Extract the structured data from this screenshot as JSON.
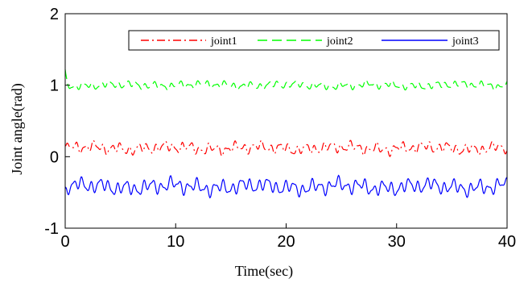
{
  "chart_data": {
    "type": "line",
    "xlabel": "Time(sec)",
    "ylabel": "Joint angle(rad)",
    "xlim": [
      0,
      40
    ],
    "ylim": [
      -1,
      2
    ],
    "xticks": [
      "0",
      "10",
      "20",
      "30",
      "40"
    ],
    "yticks": [
      "-1",
      "0",
      "1",
      "2"
    ],
    "grid": false,
    "legend_position": "top-right",
    "series": [
      {
        "name": "joint1",
        "color": "#ff0000",
        "style": "dash-dot",
        "base": 0.12,
        "amp": 0.09,
        "start": 0.15,
        "phase": 0.0
      },
      {
        "name": "joint2",
        "color": "#00ff00",
        "style": "dashed",
        "base": 1.0,
        "amp": 0.06,
        "start": 1.22,
        "phase": 1.3
      },
      {
        "name": "joint3",
        "color": "#0000ff",
        "style": "solid",
        "base": -0.42,
        "amp": 0.12,
        "start": -0.45,
        "phase": 2.1
      }
    ]
  }
}
